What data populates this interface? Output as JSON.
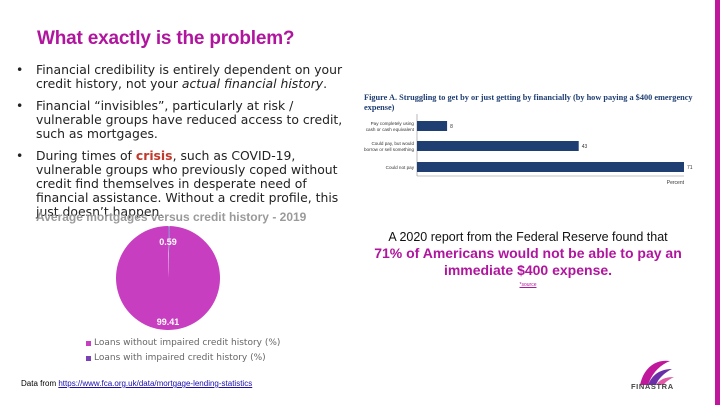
{
  "title": "What exactly is the problem?",
  "bullets": [
    {
      "text": "Financial credibility is entirely dependent on your credit history, not your ",
      "italic": "actual financial history",
      "after": "."
    },
    {
      "text": "Financial “invisibles”, particularly at risk / vulnerable groups have reduced access to credit, such as mortgages."
    },
    {
      "before": "During times of ",
      "highlight": "crisis",
      "after": ", such as COVID-19, vulnerable groups who previously coped without credit find themselves in desperate need of financial assistance. Without a credit profile, this just doesn’t happen."
    }
  ],
  "bullet_symbol": "•",
  "pie_title": "Average mortgages versus credit history - 2019",
  "report": {
    "intro": "A 2020 report from the Federal Reserve found that",
    "highlight": "71% of Americans would not be able to pay an immediate $400 expense.",
    "source": "*source"
  },
  "footnote": {
    "prefix": "Data from ",
    "link": "https://www.fca.org.uk/data/mortgage-lending-statistics"
  },
  "logo": {
    "text": "FINASTRA",
    "icon": "finastra-logo-icon"
  },
  "colors": {
    "accent": "#b0159e",
    "pie": "#c83ec0",
    "pie_small": "#7a40b8",
    "bar": "#1f3e72"
  },
  "chart_data": [
    {
      "type": "pie",
      "title": "Average mortgages versus credit history - 2019",
      "labels": [
        "Loans without impaired credit history (%)",
        "Loans with impaired credit history (%)"
      ],
      "values": [
        99.41,
        0.59
      ],
      "data_labels": [
        "99.41",
        "0.59"
      ],
      "legend_position": "bottom"
    },
    {
      "type": "bar",
      "orientation": "horizontal",
      "title": "Figure A. Struggling to get by or just getting by financially (by how paying a $400 emergency expense)",
      "categories": [
        "Pay completely using cash or cash equivalent",
        "Could pay, but would borrow or sell something",
        "Could not pay"
      ],
      "category_lines": [
        [
          "Pay completely using",
          "cash or cash equivalent"
        ],
        [
          "Could pay, but would",
          "borrow or sell something"
        ],
        [
          "Could not pay"
        ]
      ],
      "values": [
        8,
        43,
        71
      ],
      "xlabel": "Percent",
      "xlim": [
        0,
        71
      ]
    }
  ]
}
